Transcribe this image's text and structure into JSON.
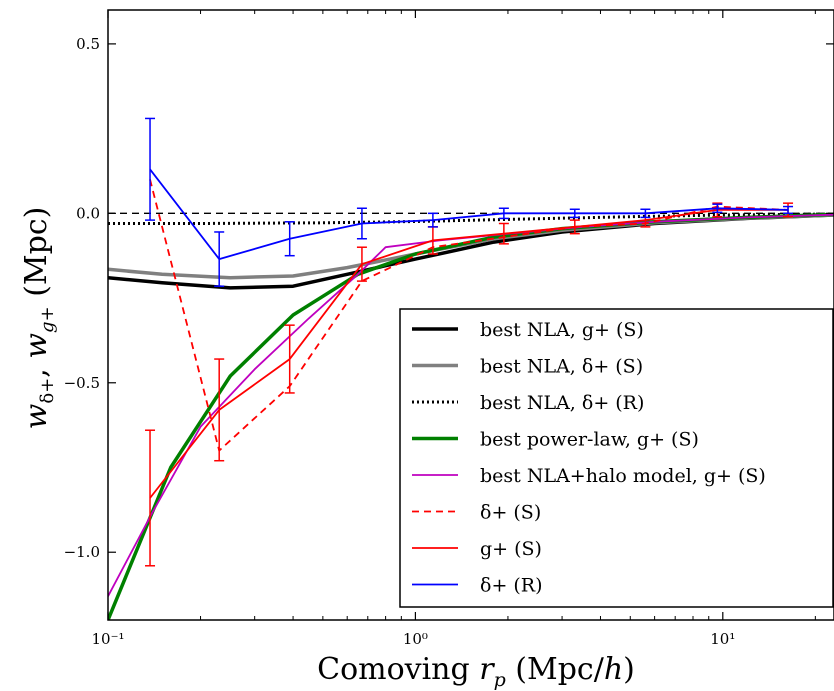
{
  "chart_data": {
    "type": "line",
    "xscale": "log",
    "xlim": [
      0.1,
      23
    ],
    "ylim": [
      -1.2,
      0.6
    ],
    "xlabel": "Comoving r_p (Mpc/h)",
    "ylabel": "w_δ+, w_g+ (Mpc)",
    "x_tick_labels": [
      "10⁻¹",
      "10⁰",
      "10¹"
    ],
    "x_tick_values": [
      0.1,
      1,
      10
    ],
    "y_tick_labels": [
      "0.5",
      "0.0",
      "−0.5",
      "−1.0"
    ],
    "y_tick_values": [
      0.5,
      0.0,
      -0.5,
      -1.0
    ],
    "zero_line": true,
    "legend_position": "lower-right",
    "legend": [
      "best NLA, g+ (S)",
      "best NLA, δ+ (S)",
      "best NLA, δ+ (R)",
      "best power-law, g+ (S)",
      "best NLA+halo model, g+ (S)",
      "δ+ (S)",
      "g+ (S)",
      "δ+ (R)"
    ],
    "series": [
      {
        "name": "best NLA, g+ (S)",
        "color": "#000000",
        "width": 3.5,
        "style": "solid",
        "x": [
          0.1,
          0.15,
          0.25,
          0.4,
          0.6,
          1.0,
          1.8,
          3.0,
          6.0,
          12,
          23
        ],
        "y": [
          -0.19,
          -0.205,
          -0.22,
          -0.215,
          -0.18,
          -0.135,
          -0.085,
          -0.055,
          -0.03,
          -0.015,
          -0.005
        ]
      },
      {
        "name": "best NLA, δ+ (S)",
        "color": "#808080",
        "width": 3.5,
        "style": "solid",
        "x": [
          0.1,
          0.15,
          0.25,
          0.4,
          0.6,
          1.0,
          1.8,
          3.0,
          6.0,
          12,
          23
        ],
        "y": [
          -0.165,
          -0.18,
          -0.19,
          -0.185,
          -0.16,
          -0.12,
          -0.075,
          -0.05,
          -0.028,
          -0.014,
          -0.005
        ]
      },
      {
        "name": "best NLA, δ+ (R)",
        "color": "#000000",
        "width": 3,
        "style": "dotted",
        "x": [
          0.1,
          0.2,
          0.5,
          1.0,
          2.0,
          5.0,
          10,
          23
        ],
        "y": [
          -0.03,
          -0.03,
          -0.028,
          -0.024,
          -0.018,
          -0.01,
          -0.005,
          -0.002
        ]
      },
      {
        "name": "best power-law, g+ (S)",
        "color": "#008000",
        "width": 3.5,
        "style": "solid",
        "x": [
          0.1,
          0.16,
          0.25,
          0.4,
          0.65,
          1.0,
          1.8,
          3.0,
          6.0,
          12,
          23
        ],
        "y": [
          -1.2,
          -0.75,
          -0.48,
          -0.3,
          -0.18,
          -0.12,
          -0.07,
          -0.045,
          -0.025,
          -0.012,
          -0.003
        ]
      },
      {
        "name": "best NLA+halo model, g+ (S)",
        "color": "#bf00bf",
        "width": 1.8,
        "style": "solid",
        "x": [
          0.1,
          0.14,
          0.2,
          0.3,
          0.45,
          0.65,
          0.8,
          1.2,
          2.0,
          3.5,
          6.0,
          12,
          23
        ],
        "y": [
          -1.13,
          -0.88,
          -0.63,
          -0.46,
          -0.31,
          -0.18,
          -0.1,
          -0.08,
          -0.06,
          -0.04,
          -0.025,
          -0.012,
          -0.004
        ]
      },
      {
        "name": "δ+ (S)",
        "color": "#ff0000",
        "width": 1.8,
        "style": "dashed",
        "x": [
          0.137,
          0.23,
          0.39,
          0.67,
          1.14,
          1.94,
          3.3,
          5.6,
          9.6,
          16.3
        ],
        "y": [
          0.1,
          -0.7,
          -0.51,
          -0.2,
          -0.1,
          -0.07,
          -0.04,
          -0.03,
          0.02,
          0.01
        ],
        "yerr": [
          0.31,
          0.2,
          0.12,
          0.09,
          0.05,
          0.03,
          0.025,
          0.025,
          0.025,
          0.02
        ]
      },
      {
        "name": "g+ (S)",
        "color": "#ff0000",
        "width": 1.8,
        "style": "solid",
        "x": [
          0.137,
          0.23,
          0.39,
          0.67,
          1.14,
          1.94,
          3.3,
          5.6,
          9.6,
          16.3
        ],
        "y": [
          -0.84,
          -0.58,
          -0.43,
          -0.15,
          -0.08,
          -0.06,
          -0.04,
          -0.02,
          0.01,
          0.01
        ],
        "yerr": [
          0.2,
          0.15,
          0.1,
          0.05,
          0.04,
          0.03,
          0.02,
          0.02,
          0.02,
          0.02
        ]
      },
      {
        "name": "δ+ (R)",
        "color": "#0000ff",
        "width": 1.8,
        "style": "solid",
        "x": [
          0.137,
          0.23,
          0.39,
          0.67,
          1.14,
          1.94,
          3.3,
          5.6,
          9.6,
          16.3
        ],
        "y": [
          0.13,
          -0.135,
          -0.075,
          -0.03,
          -0.02,
          0.0,
          0.0,
          0.0,
          0.015,
          0.01
        ],
        "yerr": [
          0.15,
          0.08,
          0.05,
          0.045,
          0.02,
          0.015,
          0.012,
          0.012,
          0.012,
          0.01
        ]
      }
    ]
  }
}
